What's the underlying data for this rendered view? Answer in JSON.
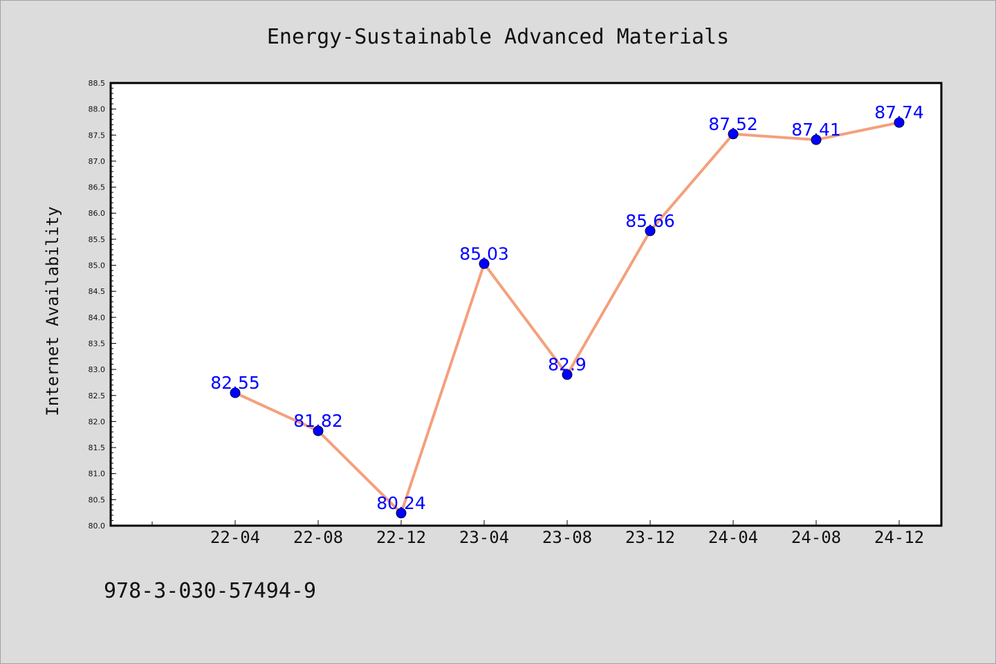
{
  "chart_data": {
    "type": "line",
    "title": "Energy-Sustainable Advanced Materials",
    "ylabel": "Internet Availability",
    "xlabel": "",
    "categories": [
      "22-04",
      "22-08",
      "22-12",
      "23-04",
      "23-08",
      "23-12",
      "24-04",
      "24-08",
      "24-12"
    ],
    "series": [
      {
        "values": [
          82.55,
          81.82,
          80.24,
          85.03,
          82.9,
          85.66,
          87.52,
          87.41,
          87.74
        ],
        "labels": [
          "82.55",
          "81.82",
          "80.24",
          "85.03",
          "82.9",
          "85.66",
          "87.52",
          "87.41",
          "87.74"
        ],
        "line_color": "#f4a07c",
        "marker_color": "#0000ff"
      }
    ],
    "ylim": [
      80.0,
      88.5
    ],
    "yticks": [
      "80.0",
      "80.5",
      "81.0",
      "81.5",
      "82.0",
      "82.5",
      "83.0",
      "83.5",
      "84.0",
      "84.5",
      "85.0",
      "85.5",
      "86.0",
      "86.5",
      "87.0",
      "87.5",
      "88.0",
      "88.5"
    ],
    "grid": false,
    "legend": "none"
  },
  "footer": {
    "isbn": "978-3-030-57494-9"
  }
}
